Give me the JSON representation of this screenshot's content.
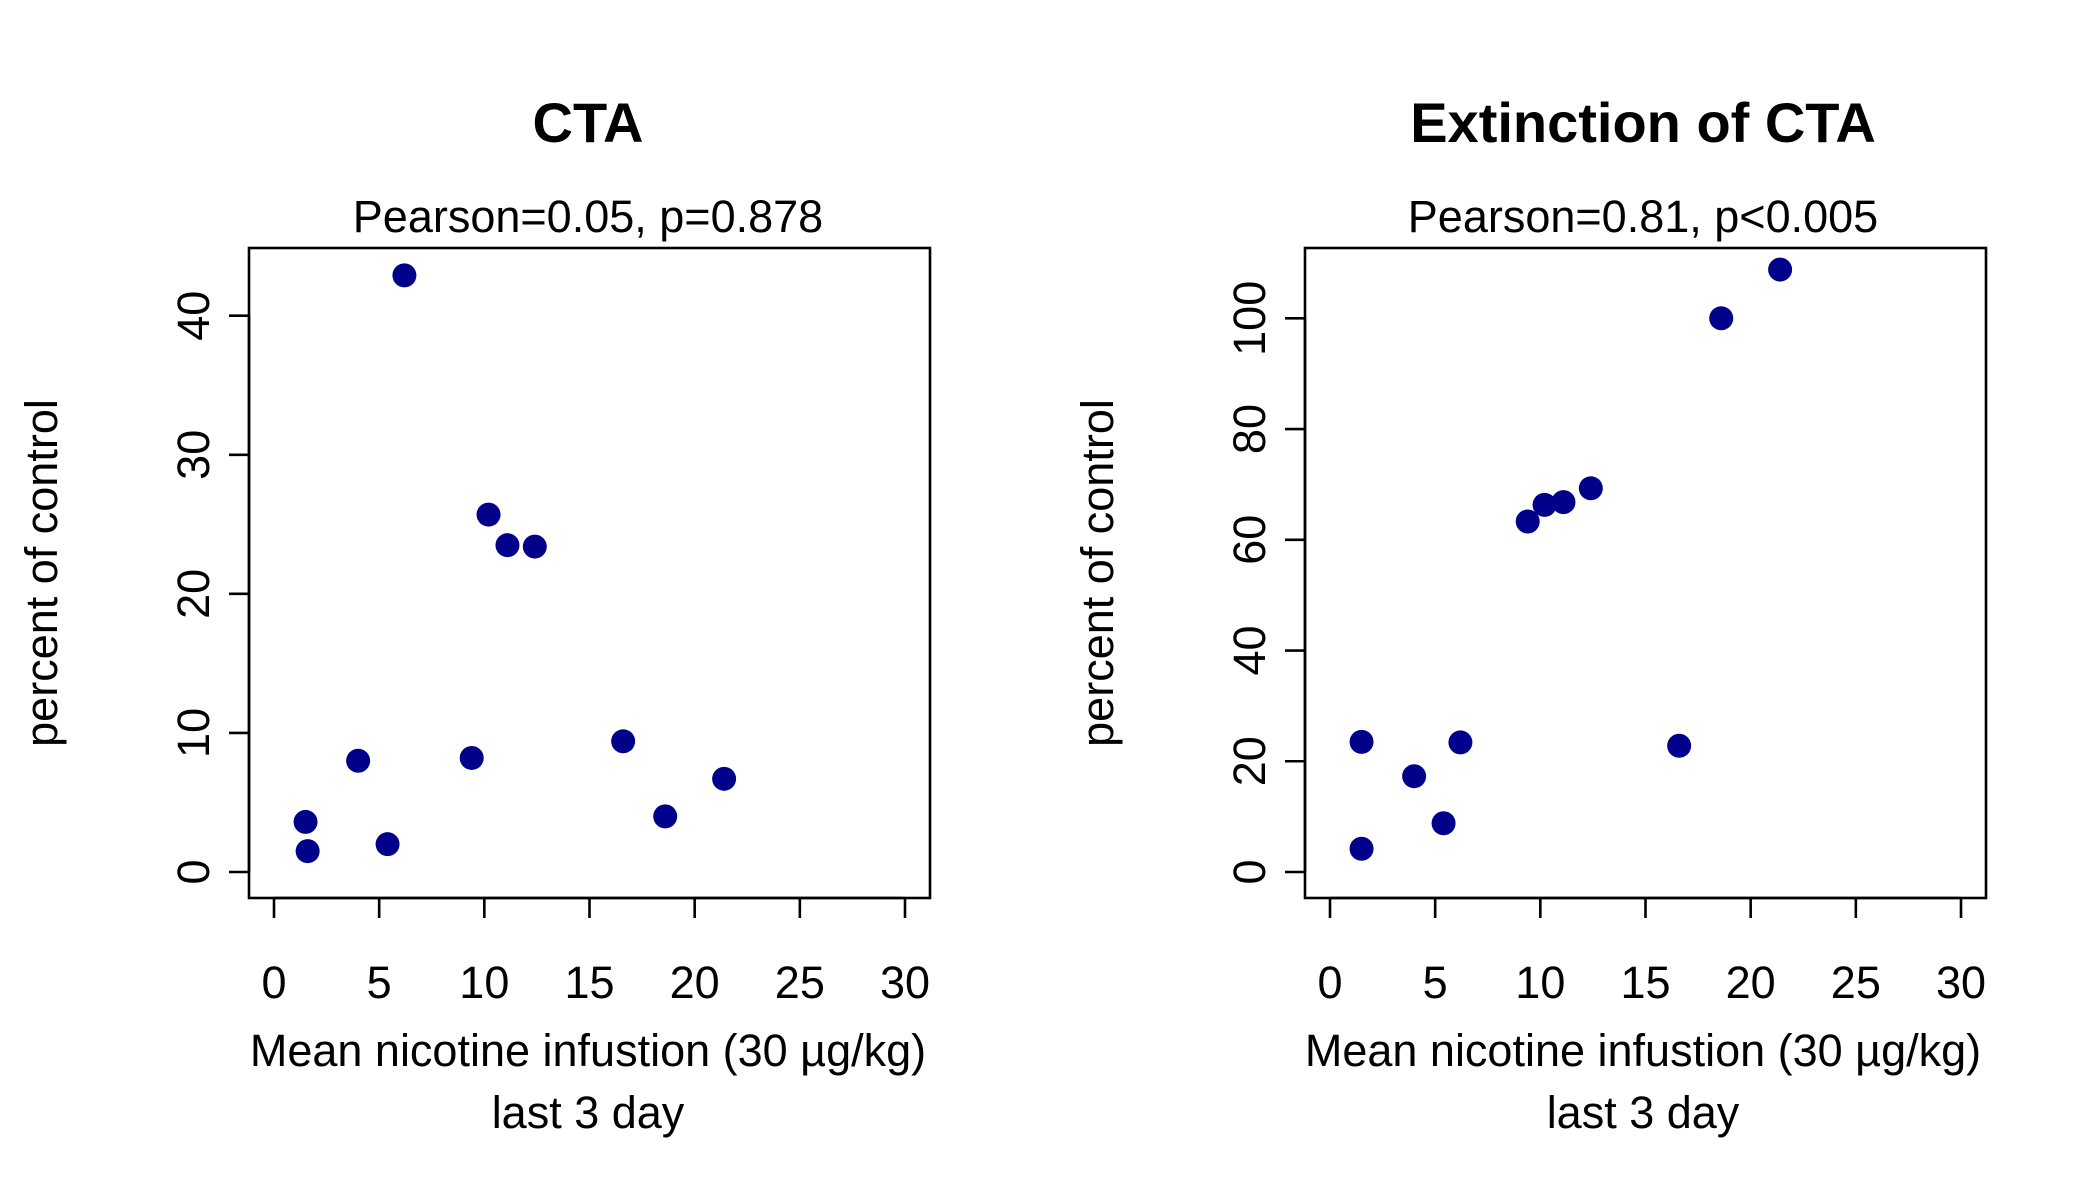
{
  "chart_data": [
    {
      "type": "scatter",
      "title": "CTA",
      "subtitle": "Pearson=0.05, p=0.878",
      "xlabel": "Mean nicotine infustion (30 µg/kg)",
      "xlabel_line2": "last 3 day",
      "ylabel": "percent of control",
      "xlim": [
        0,
        30
      ],
      "ylim": [
        0,
        43
      ],
      "xticks": [
        0,
        5,
        10,
        15,
        20,
        25,
        30
      ],
      "yticks": [
        0,
        10,
        20,
        30,
        40
      ],
      "grid": false,
      "point_color": "#00008b",
      "points": [
        {
          "x": 1.5,
          "y": 3.6
        },
        {
          "x": 1.6,
          "y": 1.5
        },
        {
          "x": 4.0,
          "y": 8.0
        },
        {
          "x": 5.4,
          "y": 2.0
        },
        {
          "x": 6.2,
          "y": 42.9
        },
        {
          "x": 9.4,
          "y": 8.2
        },
        {
          "x": 10.2,
          "y": 25.7
        },
        {
          "x": 11.1,
          "y": 23.5
        },
        {
          "x": 12.4,
          "y": 23.4
        },
        {
          "x": 16.6,
          "y": 9.4
        },
        {
          "x": 18.6,
          "y": 4.0
        },
        {
          "x": 21.4,
          "y": 6.7
        }
      ]
    },
    {
      "type": "scatter",
      "title": "Extinction of CTA",
      "subtitle": "Pearson=0.81, p<0.005",
      "xlabel": "Mean nicotine infustion (30 µg/kg)",
      "xlabel_line2": "last 3 day",
      "ylabel": "percent of control",
      "xlim": [
        0,
        30
      ],
      "ylim": [
        0,
        108
      ],
      "xticks": [
        0,
        5,
        10,
        15,
        20,
        25,
        30
      ],
      "yticks": [
        0,
        20,
        40,
        60,
        80,
        100
      ],
      "grid": false,
      "point_color": "#00008b",
      "points": [
        {
          "x": 1.5,
          "y": 23.5
        },
        {
          "x": 1.5,
          "y": 4.2
        },
        {
          "x": 4.0,
          "y": 17.3
        },
        {
          "x": 5.4,
          "y": 8.8
        },
        {
          "x": 6.2,
          "y": 23.4
        },
        {
          "x": 9.4,
          "y": 63.3
        },
        {
          "x": 10.2,
          "y": 66.3
        },
        {
          "x": 11.1,
          "y": 66.8
        },
        {
          "x": 12.4,
          "y": 69.3
        },
        {
          "x": 16.6,
          "y": 22.8
        },
        {
          "x": 18.6,
          "y": 100.0
        },
        {
          "x": 21.4,
          "y": 108.8
        }
      ]
    }
  ]
}
